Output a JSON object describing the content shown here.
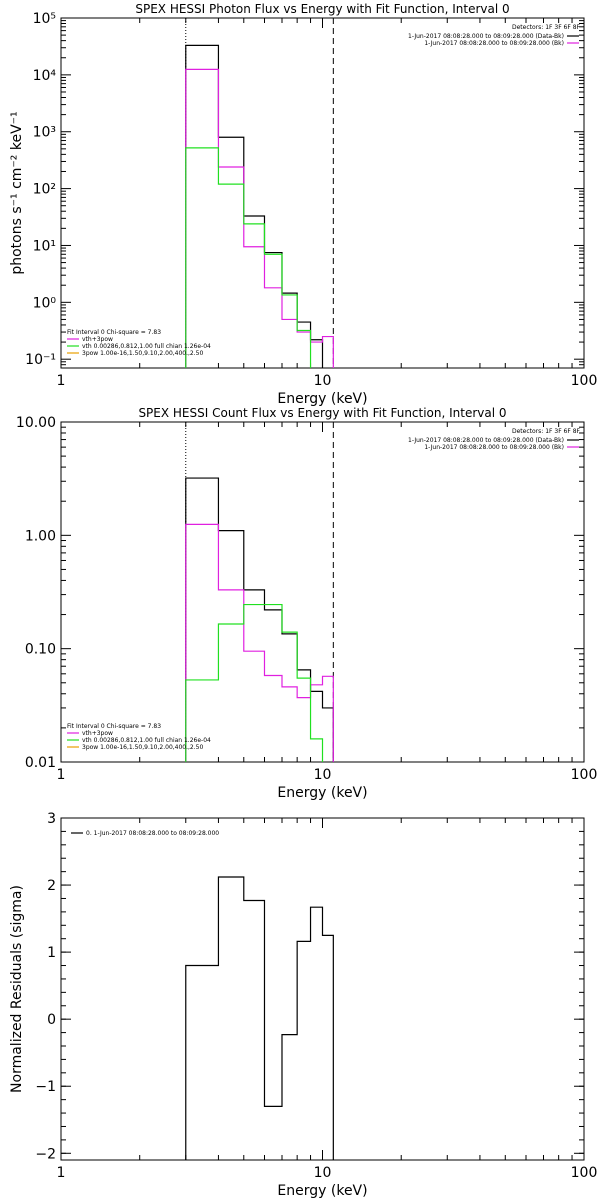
{
  "colors": {
    "black": "#000000",
    "magenta": "#e020e0",
    "green": "#20e020",
    "orange": "#e8a000",
    "background": "#ffffff"
  },
  "chart_data": [
    {
      "id": "photon",
      "type": "line",
      "title": "SPEX HESSI Photon Flux vs Energy with Fit Function, Interval 0",
      "xlabel": "Energy (keV)",
      "ylabel": "photons s⁻¹ cm⁻² keV⁻¹",
      "xscale": "log",
      "yscale": "log",
      "xlim": [
        1,
        100
      ],
      "ylim": [
        0.07,
        100000
      ],
      "x_ticks": [
        {
          "v": 1,
          "label": "1"
        },
        {
          "v": 10,
          "label": "10"
        },
        {
          "v": 100,
          "label": "100"
        }
      ],
      "y_ticks": [
        {
          "v": 0.1,
          "label": "10⁻¹"
        },
        {
          "v": 1,
          "label": "10⁰"
        },
        {
          "v": 10,
          "label": "10¹"
        },
        {
          "v": 100,
          "label": "10²"
        },
        {
          "v": 1000,
          "label": "10³"
        },
        {
          "v": 10000,
          "label": "10⁴"
        },
        {
          "v": 100000,
          "label": "10⁵"
        }
      ],
      "edges": [
        3.0,
        4.0,
        5.0,
        6.0,
        7.0,
        8.0,
        9.0,
        10.0,
        11.0
      ],
      "series": [
        {
          "name": "black",
          "color": "black",
          "values": [
            33000,
            800,
            33,
            7.5,
            1.45,
            0.45,
            0.22,
            null
          ]
        },
        {
          "name": "magenta",
          "color": "magenta",
          "values": [
            12500,
            240,
            9.5,
            1.8,
            0.5,
            0.3,
            0.2,
            0.25
          ]
        },
        {
          "name": "green",
          "color": "green",
          "values": [
            520,
            120,
            24,
            7.0,
            1.35,
            0.32,
            0.06,
            null
          ]
        }
      ],
      "vlines": [
        {
          "x": 3.0,
          "style": "dotted"
        },
        {
          "x": 11.0,
          "style": "dashed"
        }
      ],
      "legend_top_right": {
        "detectors": "Detectors: 1F 3F 6F 8F",
        "rows": [
          {
            "text": "1-Jun-2017 08:08:28.000 to 08:09:28.000 (Data-Bk)",
            "color": "black"
          },
          {
            "text": "1-Jun-2017 08:08:28.000 to 08:09:28.000 (Bk)",
            "color": "magenta"
          }
        ]
      },
      "legend_bottom_left": {
        "header": "Fit Interval 0   Chi-square = 7.83",
        "rows": [
          {
            "text": "vth+3pow",
            "color": "magenta"
          },
          {
            "text": "vth 0.00286,0.812,1.00   full chian 1.26e-04",
            "color": "green"
          },
          {
            "text": "3pow 1.00e-16,1.50,9.10,2.00,400.,2.50",
            "color": "orange"
          }
        ]
      }
    },
    {
      "id": "count",
      "type": "line",
      "title": "SPEX HESSI Count Flux vs Energy with Fit Function, Interval 0",
      "xlabel": "Energy (keV)",
      "ylabel": "",
      "xscale": "log",
      "yscale": "log",
      "xlim": [
        1,
        100
      ],
      "ylim": [
        0.01,
        10
      ],
      "x_ticks": [
        {
          "v": 1,
          "label": "1"
        },
        {
          "v": 10,
          "label": "10"
        },
        {
          "v": 100,
          "label": "100"
        }
      ],
      "y_ticks": [
        {
          "v": 0.01,
          "label": "0.01"
        },
        {
          "v": 0.1,
          "label": "0.10"
        },
        {
          "v": 1,
          "label": "1.00"
        },
        {
          "v": 10,
          "label": "10.00"
        }
      ],
      "edges": [
        3.0,
        4.0,
        5.0,
        6.0,
        7.0,
        8.0,
        9.0,
        10.0,
        11.0
      ],
      "series": [
        {
          "name": "black",
          "color": "black",
          "values": [
            3.2,
            1.1,
            0.33,
            0.22,
            0.135,
            0.065,
            0.042,
            0.03
          ]
        },
        {
          "name": "magenta",
          "color": "magenta",
          "values": [
            1.25,
            0.33,
            0.095,
            0.058,
            0.046,
            0.037,
            0.048,
            0.057
          ]
        },
        {
          "name": "green",
          "color": "green",
          "values": [
            0.053,
            0.165,
            0.245,
            0.245,
            0.14,
            0.055,
            0.016,
            null
          ]
        }
      ],
      "vlines": [
        {
          "x": 3.0,
          "style": "dotted"
        },
        {
          "x": 11.0,
          "style": "dashed"
        }
      ],
      "legend_top_right": {
        "detectors": "Detectors: 1F 3F 6F 8F",
        "rows": [
          {
            "text": "1-Jun-2017 08:08:28.000 to 08:09:28.000 (Data-Bk)",
            "color": "black"
          },
          {
            "text": "1-Jun-2017 08:08:28.000 to 08:09:28.000 (Bk)",
            "color": "magenta"
          }
        ]
      },
      "legend_bottom_left": {
        "header": "Fit Interval 0   Chi-square = 7.83",
        "rows": [
          {
            "text": "vth+3pow",
            "color": "magenta"
          },
          {
            "text": "vth 0.00286,0.812,1.00   full chian 1.26e-04",
            "color": "green"
          },
          {
            "text": "3pow 1.00e-16,1.50,9.10,2.00,400.,2.50",
            "color": "orange"
          }
        ]
      }
    },
    {
      "id": "resid",
      "type": "line",
      "title": "",
      "xlabel": "Energy (keV)",
      "ylabel": "Normalized Residuals (sigma)",
      "xscale": "log",
      "yscale": "linear",
      "xlim": [
        1,
        100
      ],
      "ylim": [
        -2.1,
        3.0
      ],
      "x_ticks": [
        {
          "v": 1,
          "label": "1"
        },
        {
          "v": 10,
          "label": "10"
        },
        {
          "v": 100,
          "label": "100"
        }
      ],
      "y_ticks": [
        {
          "v": -2,
          "label": "−2"
        },
        {
          "v": -1,
          "label": "−1"
        },
        {
          "v": 0,
          "label": "0"
        },
        {
          "v": 1,
          "label": "1"
        },
        {
          "v": 2,
          "label": "2"
        },
        {
          "v": 3,
          "label": "3"
        }
      ],
      "edges": [
        3.0,
        4.0,
        5.0,
        6.0,
        7.0,
        8.0,
        9.0,
        10.0,
        11.0
      ],
      "series": [
        {
          "name": "0",
          "color": "black",
          "values": [
            0.8,
            2.12,
            1.77,
            -1.3,
            -0.23,
            1.16,
            1.67,
            1.25
          ]
        }
      ],
      "vlines": [],
      "legend_top_left": {
        "rows": [
          {
            "text": "0.  1-Jun-2017 08:08:28.000 to 08:09:28.000",
            "color": "black"
          }
        ]
      }
    }
  ]
}
